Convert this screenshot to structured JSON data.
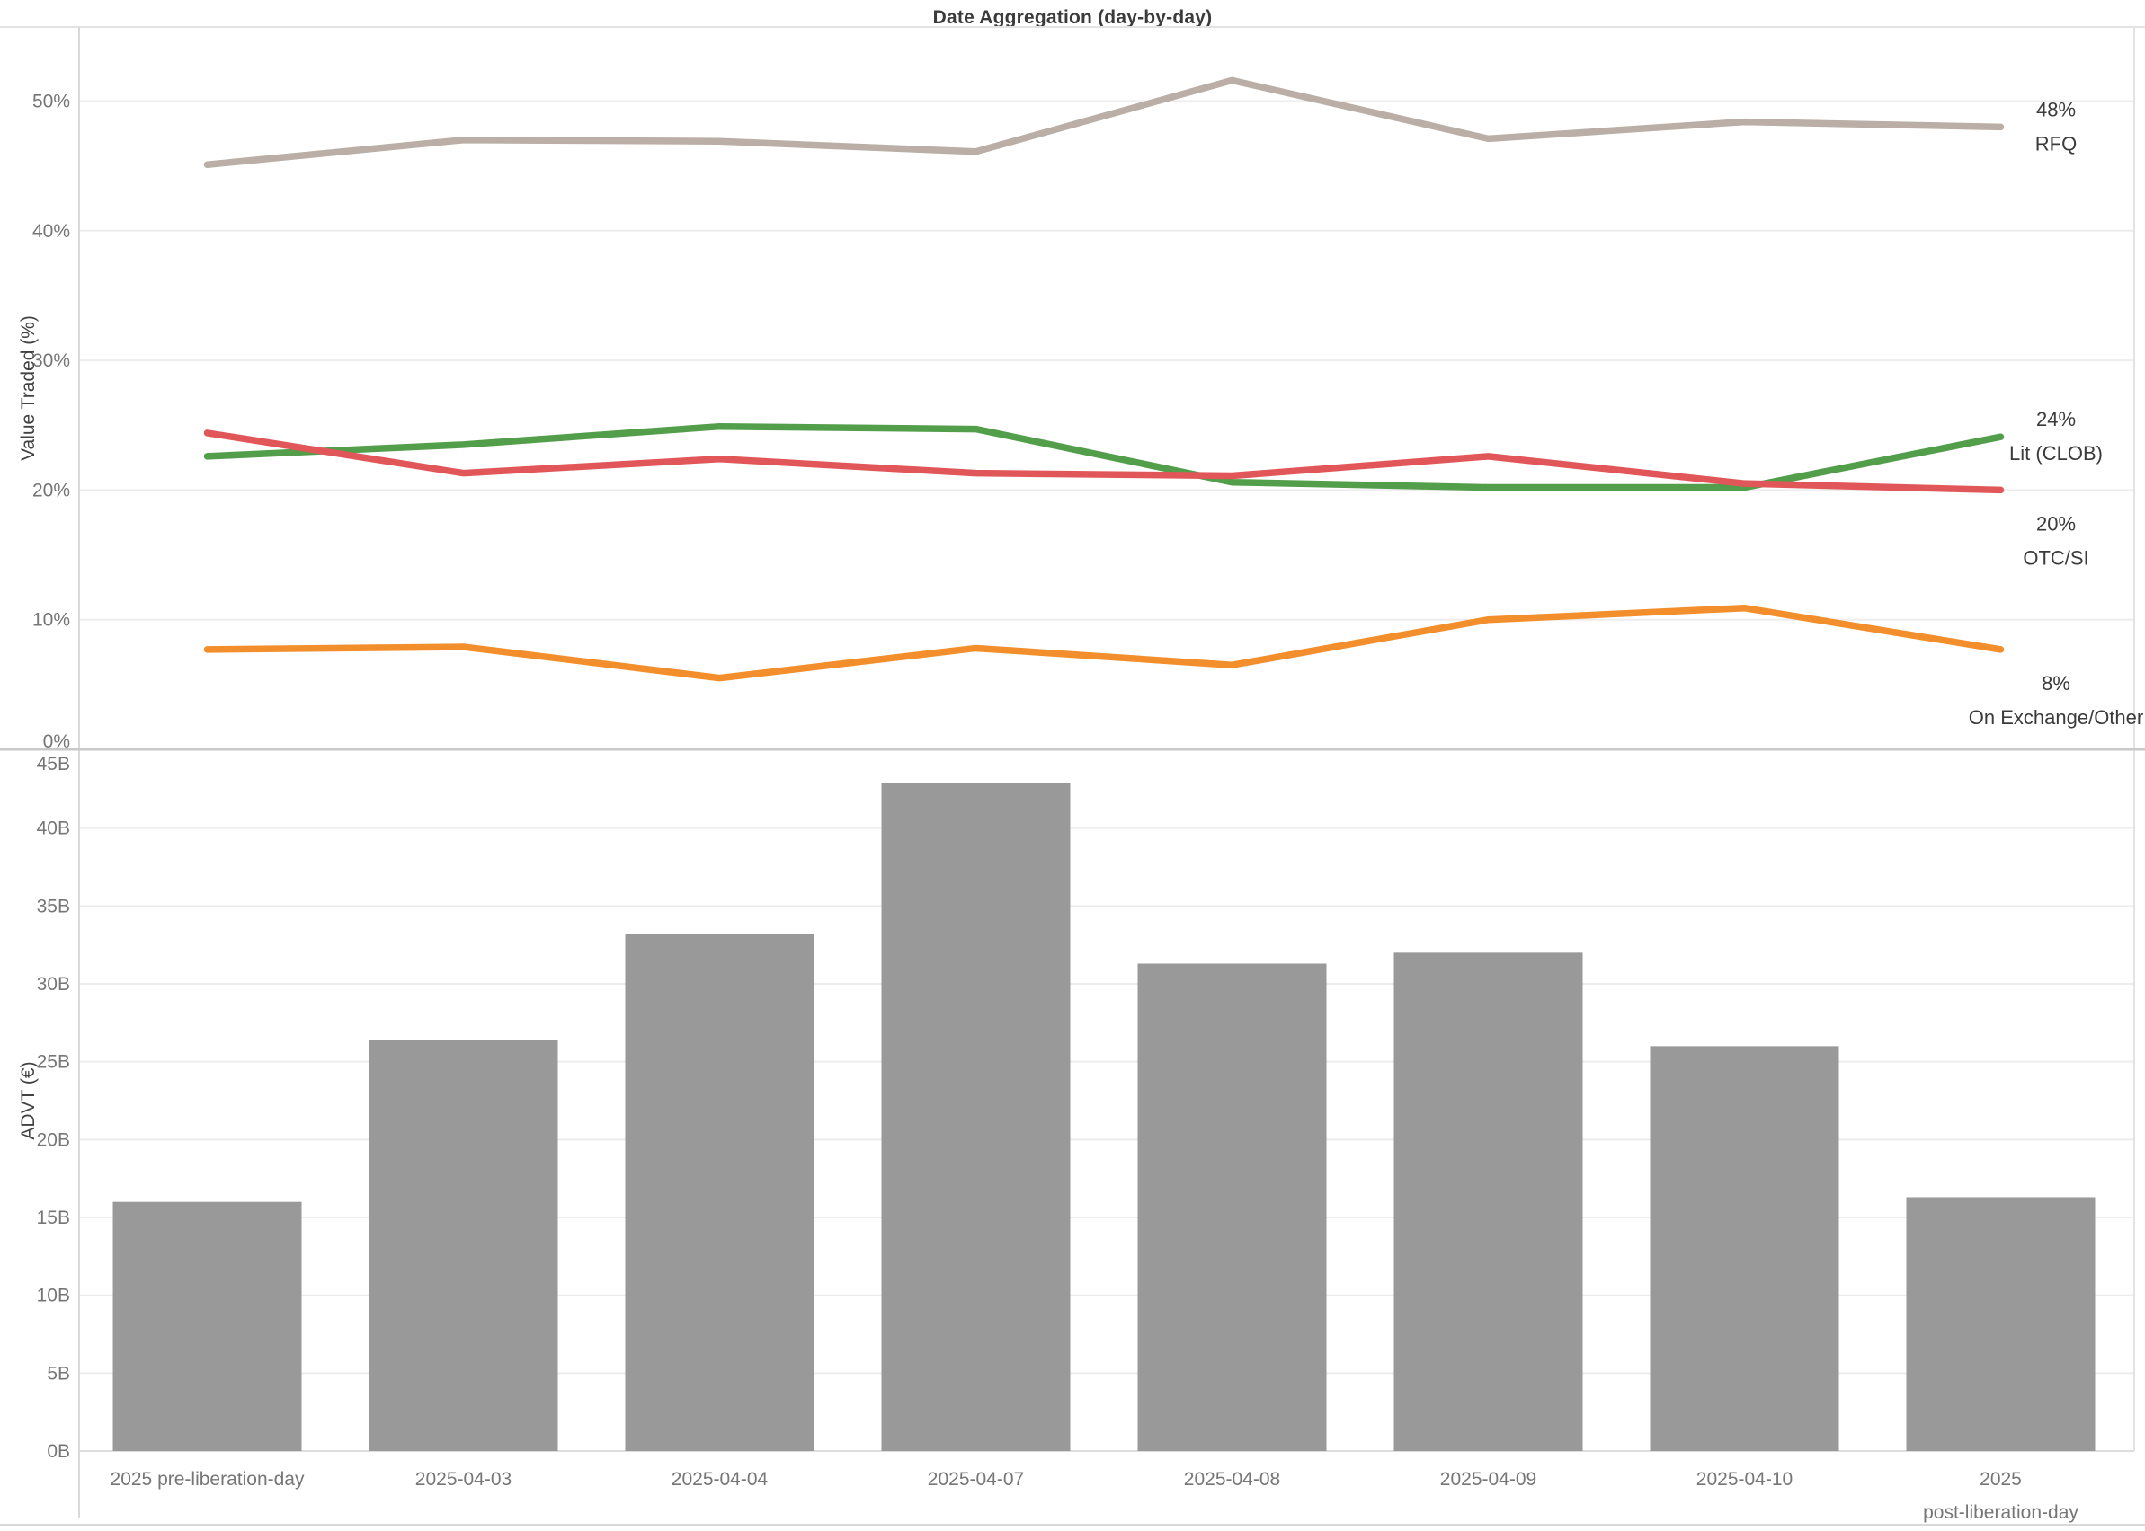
{
  "title": "Date Aggregation (day-by-day)",
  "colors": {
    "rfq": "#baaea6",
    "lit_clob": "#529e4a",
    "otc_si": "#e15759",
    "on_exchange_other": "#f28e2c",
    "bar_fill": "#999999",
    "grid_line": "#ededed",
    "divider": "#c9c9c9",
    "border": "#e3e3e3",
    "axis_tick_text": "#767676",
    "axis_title_text": "#424242",
    "title_text": "#3b3b3b",
    "series_label_text": "#3b3b3b"
  },
  "x_axis": {
    "labels": [
      [
        "2025 pre-liberation-day"
      ],
      [
        "2025-04-03"
      ],
      [
        "2025-04-04"
      ],
      [
        "2025-04-07"
      ],
      [
        "2025-04-08"
      ],
      [
        "2025-04-09"
      ],
      [
        "2025-04-10"
      ],
      [
        "2025",
        "post-liberation-day"
      ]
    ]
  },
  "chart_data": [
    {
      "type": "line",
      "title": "Date Aggregation (day-by-day)",
      "xlabel": "",
      "ylabel": "Value Traded (%)",
      "ylim": [
        0,
        55
      ],
      "grid": true,
      "legend_position": "right-end-labels",
      "yticks": [
        {
          "value": 0,
          "label": "0%"
        },
        {
          "value": 10,
          "label": "10%"
        },
        {
          "value": 20,
          "label": "20%"
        },
        {
          "value": 30,
          "label": "30%"
        },
        {
          "value": 40,
          "label": "40%"
        },
        {
          "value": 50,
          "label": "50%"
        }
      ],
      "categories": [
        "2025 pre-liberation-day",
        "2025-04-03",
        "2025-04-04",
        "2025-04-07",
        "2025-04-08",
        "2025-04-09",
        "2025-04-10",
        "2025 post-liberation-day"
      ],
      "series": [
        {
          "name": "RFQ",
          "color_key": "rfq",
          "end_label_value": "48%",
          "end_label_name": "RFQ",
          "label_placement": "middle",
          "values": [
            45.1,
            47.0,
            46.9,
            46.1,
            51.6,
            47.1,
            48.4,
            48.0
          ]
        },
        {
          "name": "Lit (CLOB)",
          "color_key": "lit_clob",
          "end_label_value": "24%",
          "end_label_name": "Lit (CLOB)",
          "label_placement": "middle",
          "values": [
            22.6,
            23.5,
            24.9,
            24.7,
            20.6,
            20.2,
            20.2,
            24.1
          ]
        },
        {
          "name": "OTC/SI",
          "color_key": "otc_si",
          "end_label_value": "20%",
          "end_label_name": "OTC/SI",
          "label_placement": "below",
          "values": [
            24.4,
            21.3,
            22.4,
            21.3,
            21.1,
            22.6,
            20.5,
            20.0
          ]
        },
        {
          "name": "On Exchange/Other",
          "color_key": "on_exchange_other",
          "end_label_value": "8%",
          "end_label_name": "On Exchange/Other",
          "label_placement": "below",
          "values": [
            7.7,
            7.9,
            5.5,
            7.8,
            6.5,
            10.0,
            10.9,
            7.7
          ]
        }
      ]
    },
    {
      "type": "bar",
      "xlabel": "",
      "ylabel": "ADVT (€)",
      "ylim": [
        0,
        45
      ],
      "grid": true,
      "bar_color_key": "bar_fill",
      "yticks": [
        {
          "value": 0,
          "label": "0B"
        },
        {
          "value": 5,
          "label": "5B"
        },
        {
          "value": 10,
          "label": "10B"
        },
        {
          "value": 15,
          "label": "15B"
        },
        {
          "value": 20,
          "label": "20B"
        },
        {
          "value": 25,
          "label": "25B"
        },
        {
          "value": 30,
          "label": "30B"
        },
        {
          "value": 35,
          "label": "35B"
        },
        {
          "value": 40,
          "label": "40B"
        },
        {
          "value": 45,
          "label": "45B"
        }
      ],
      "categories": [
        "2025 pre-liberation-day",
        "2025-04-03",
        "2025-04-04",
        "2025-04-07",
        "2025-04-08",
        "2025-04-09",
        "2025-04-10",
        "2025 post-liberation-day"
      ],
      "values": [
        16.0,
        26.4,
        33.2,
        42.9,
        31.3,
        32.0,
        26.0,
        16.3
      ]
    }
  ]
}
